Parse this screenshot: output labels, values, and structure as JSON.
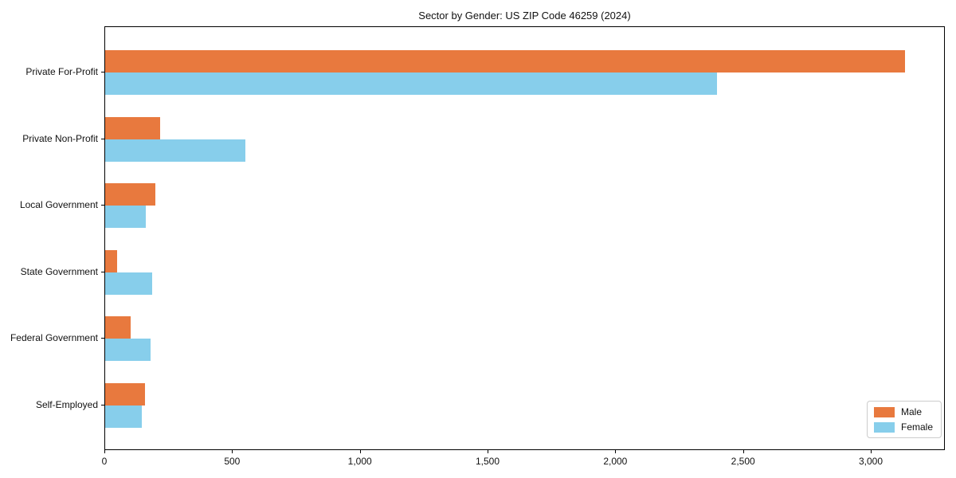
{
  "chart_data": {
    "type": "bar",
    "orientation": "horizontal",
    "title": "Sector by Gender: US ZIP Code 46259 (2024)",
    "categories": [
      "Private For-Profit",
      "Private Non-Profit",
      "Local Government",
      "State Government",
      "Federal Government",
      "Self-Employed"
    ],
    "series": [
      {
        "name": "Male",
        "color": "#e8793e",
        "values": [
          3130,
          215,
          198,
          47,
          100,
          155
        ]
      },
      {
        "name": "Female",
        "color": "#87ceeb",
        "values": [
          2395,
          550,
          158,
          185,
          178,
          143
        ]
      }
    ],
    "xlim": [
      0,
      3290
    ],
    "xticks": [
      0,
      500,
      1000,
      1500,
      2000,
      2500,
      3000
    ],
    "xtick_labels": [
      "0",
      "500",
      "1,000",
      "1,500",
      "2,000",
      "2,500",
      "3,000"
    ],
    "xlabel": "",
    "ylabel": "",
    "grid": false,
    "legend_position": "lower right",
    "background_color": "#ffffff",
    "spine_color": "#000000"
  }
}
